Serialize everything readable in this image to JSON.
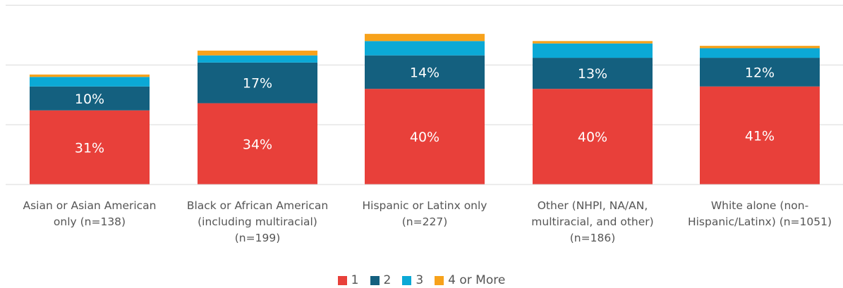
{
  "chart_data": {
    "type": "bar",
    "stacked": true,
    "categories": [
      "Asian or Asian American only (n=138)",
      "Black or African American (including multiracial) (n=199)",
      "Hispanic or Latinx only (n=227)",
      "Other (NHPI, NA/AN, multiracial, and other) (n=186)",
      "White alone (non-Hispanic/Latinx) (n=1051)"
    ],
    "category_lines": [
      [
        "Asian or Asian American",
        "only (n=138)"
      ],
      [
        "Black or African American",
        "(including multiracial)",
        "(n=199)"
      ],
      [
        "Hispanic or Latinx only",
        "(n=227)"
      ],
      [
        "Other (NHPI, NA/AN,",
        "multiracial, and other)",
        "(n=186)"
      ],
      [
        "White alone (non-",
        "Hispanic/Latinx) (n=1051)"
      ]
    ],
    "series": [
      {
        "name": "1",
        "color": "#E8403A",
        "values": [
          31,
          34,
          40,
          40,
          41
        ],
        "labels": [
          "31%",
          "34%",
          "40%",
          "40%",
          "41%"
        ]
      },
      {
        "name": "2",
        "color": "#14607F",
        "values": [
          10,
          17,
          14,
          13,
          12
        ],
        "labels": [
          "10%",
          "17%",
          "14%",
          "13%",
          "12%"
        ]
      },
      {
        "name": "3",
        "color": "#0BA9D6",
        "values": [
          4,
          3,
          6,
          6,
          4
        ],
        "labels": [
          "",
          "",
          "",
          "",
          ""
        ]
      },
      {
        "name": "4 or More",
        "color": "#F7A21B",
        "values": [
          1,
          2,
          3,
          1,
          1
        ],
        "labels": [
          "",
          "",
          "",
          "",
          ""
        ]
      }
    ],
    "ylim": [
      0,
      75
    ],
    "grid": true,
    "legend_position": "bottom"
  }
}
